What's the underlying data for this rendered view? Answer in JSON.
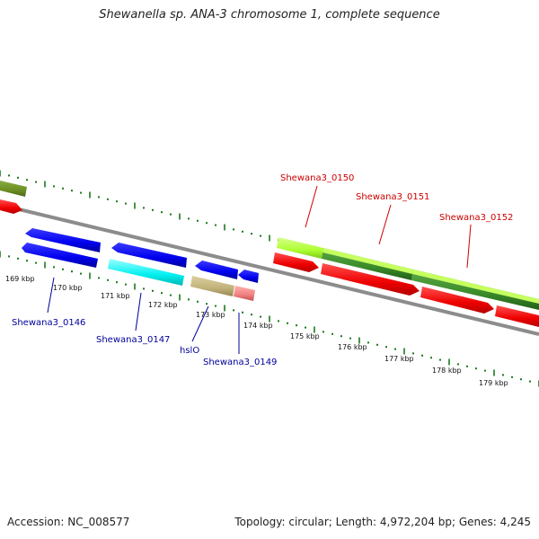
{
  "title": "Shewanella sp. ANA-3 chromosome 1, complete sequence",
  "footer": {
    "accession": "Accession: NC_008577",
    "topology": "Topology: circular; Length: 4,972,204 bp; Genes: 4,245"
  },
  "colors": {
    "backbone": "#888888",
    "tick": "#1a7a1a",
    "top_label": "#cc0000",
    "bottom_label": "#000099",
    "red": "#ff0000",
    "blue": "#0000ee",
    "cyan": "#00ffff",
    "olive_light": "#c2b27a",
    "olive_dark": "#6b8e23",
    "lime": "#adff2f",
    "green_dark": "#3a8a2a",
    "pink": "#f08080"
  },
  "ticks": [
    "169 kbp",
    "170 kbp",
    "171 kbp",
    "172 kbp",
    "173 kbp",
    "174 kbp",
    "175 kbp",
    "176 kbp",
    "177 kbp",
    "178 kbp",
    "179 kbp"
  ],
  "genes_top": [
    "Shewana3_0150",
    "Shewana3_0151",
    "Shewana3_0152"
  ],
  "genes_bottom": [
    "Shewana3_0146",
    "Shewana3_0147",
    "hslO",
    "Shewana3_0149"
  ]
}
